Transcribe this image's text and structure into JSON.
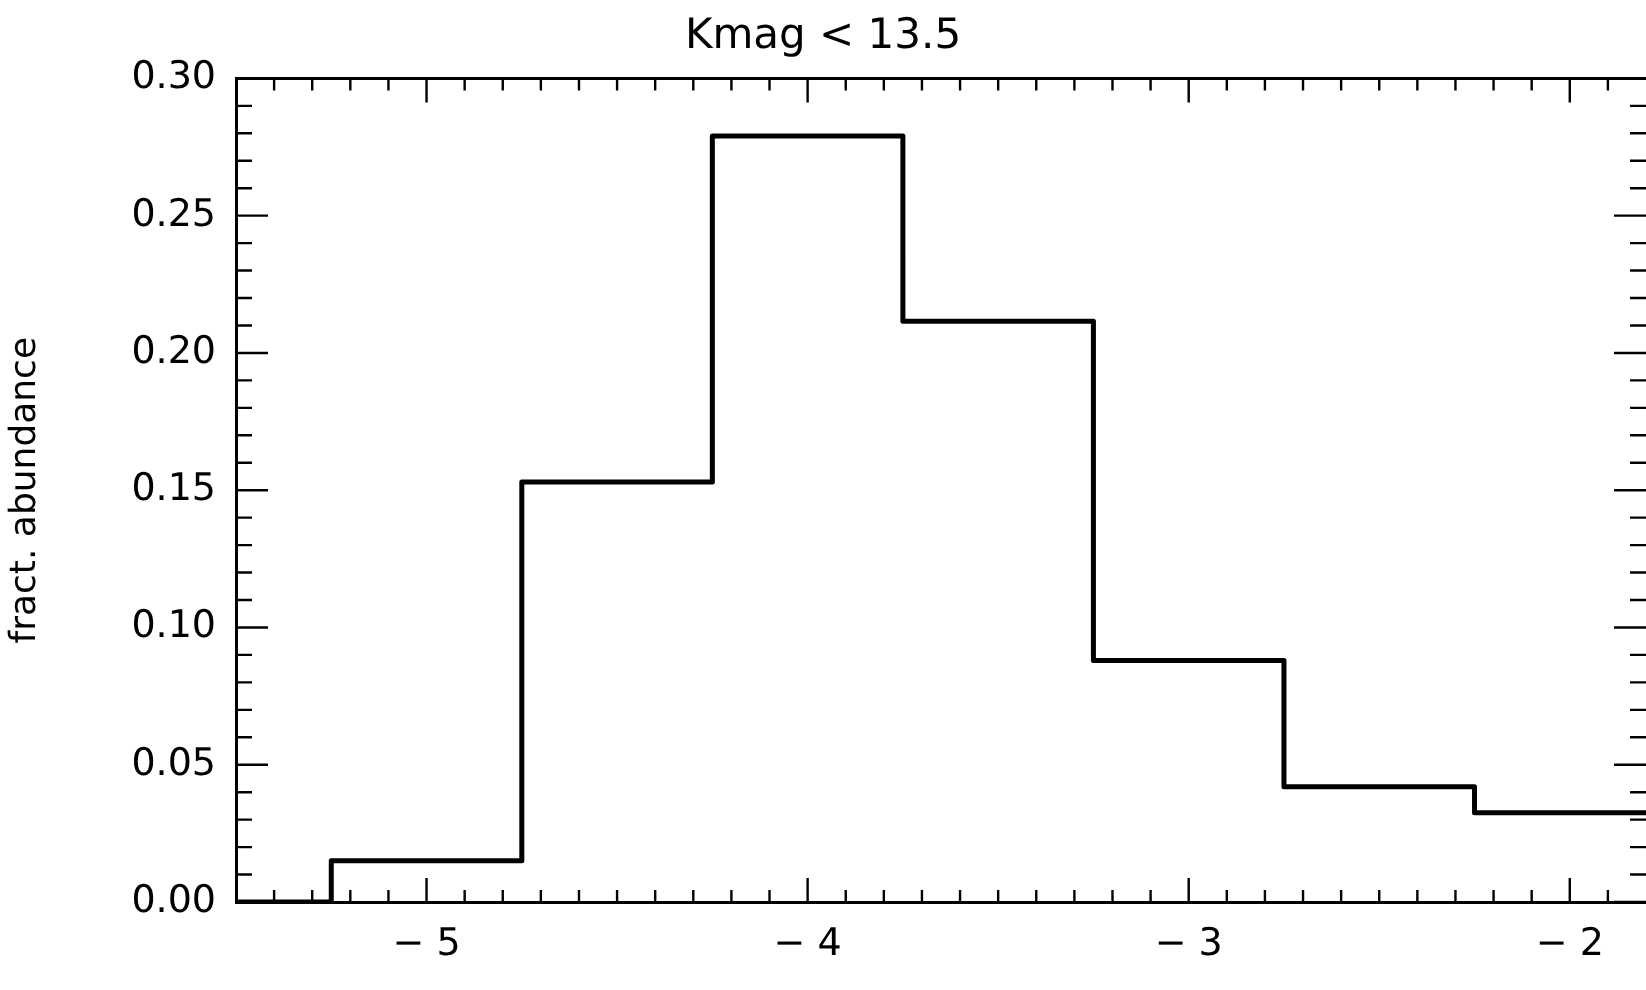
{
  "chart_data": {
    "type": "histogram",
    "title": "Kmag < 13.5",
    "ylabel": "fract. abundance",
    "bins": [
      -5.5,
      -5.25,
      -4.75,
      -4.25,
      -3.75,
      -3.25,
      -2.75,
      -2.25,
      -1.8
    ],
    "values": [
      0.0,
      0.015,
      0.153,
      0.279,
      0.2115,
      0.088,
      0.042,
      0.0325
    ],
    "color": "#000000",
    "xlim": [
      -5.5,
      -1.8
    ],
    "xticks": [
      {
        "value": -5.4,
        "label": null
      },
      {
        "value": -5.3,
        "label": null
      },
      {
        "value": -5.2,
        "label": null
      },
      {
        "value": -5.1,
        "label": null
      },
      -5,
      {
        "value": -4.9,
        "label": null
      },
      {
        "value": -4.8,
        "label": null
      },
      {
        "value": -4.7,
        "label": null
      },
      {
        "value": -4.6,
        "label": null
      },
      {
        "value": -4.5,
        "label": null
      },
      {
        "value": -4.4,
        "label": null
      },
      {
        "value": -4.3,
        "label": null
      },
      {
        "value": -4.2,
        "label": null
      },
      {
        "value": -4.1,
        "label": null
      },
      -4,
      {
        "value": -3.9,
        "label": null
      },
      {
        "value": -3.8,
        "label": null
      },
      {
        "value": -3.7,
        "label": null
      },
      {
        "value": -3.6,
        "label": null
      },
      {
        "value": -3.5,
        "label": null
      },
      {
        "value": -3.4,
        "label": null
      },
      {
        "value": -3.3,
        "label": null
      },
      {
        "value": -3.2,
        "label": null
      },
      {
        "value": -3.1,
        "label": null
      },
      -3,
      {
        "value": -2.9,
        "label": null
      },
      {
        "value": -2.8,
        "label": null
      },
      {
        "value": -2.7,
        "label": null
      },
      {
        "value": -2.6,
        "label": null
      },
      {
        "value": -2.5,
        "label": null
      },
      {
        "value": -2.4,
        "label": null
      },
      {
        "value": -2.3,
        "label": null
      },
      {
        "value": -2.2,
        "label": null
      },
      {
        "value": -2.1,
        "label": null
      },
      -2,
      {
        "value": -1.9,
        "label": null
      }
    ],
    "ylim": [
      0,
      0.3
    ],
    "yticks": [
      {
        "value": 0,
        "label": "0.00"
      },
      {
        "value": 0.01,
        "label": null
      },
      {
        "value": 0.02,
        "label": null
      },
      {
        "value": 0.03,
        "label": null
      },
      {
        "value": 0.04,
        "label": null
      },
      {
        "value": 0.05,
        "label": "0.05"
      },
      {
        "value": 0.06,
        "label": null
      },
      {
        "value": 0.07,
        "label": null
      },
      {
        "value": 0.08,
        "label": null
      },
      {
        "value": 0.09,
        "label": null
      },
      {
        "value": 0.1,
        "label": "0.10"
      },
      {
        "value": 0.11,
        "label": null
      },
      {
        "value": 0.12,
        "label": null
      },
      {
        "value": 0.13,
        "label": null
      },
      {
        "value": 0.14,
        "label": null
      },
      {
        "value": 0.15,
        "label": "0.15"
      },
      {
        "value": 0.16,
        "label": null
      },
      {
        "value": 0.17,
        "label": null
      },
      {
        "value": 0.18,
        "label": null
      },
      {
        "value": 0.19,
        "label": null
      },
      {
        "value": 0.2,
        "label": "0.20"
      },
      {
        "value": 0.21,
        "label": null
      },
      {
        "value": 0.22,
        "label": null
      },
      {
        "value": 0.23,
        "label": null
      },
      {
        "value": 0.24,
        "label": null
      },
      {
        "value": 0.25,
        "label": "0.25"
      },
      {
        "value": 0.26,
        "label": null
      },
      {
        "value": 0.27,
        "label": null
      },
      {
        "value": 0.28,
        "label": null
      },
      {
        "value": 0.29,
        "label": null
      },
      {
        "value": 0.3,
        "label": "0.30"
      }
    ]
  }
}
